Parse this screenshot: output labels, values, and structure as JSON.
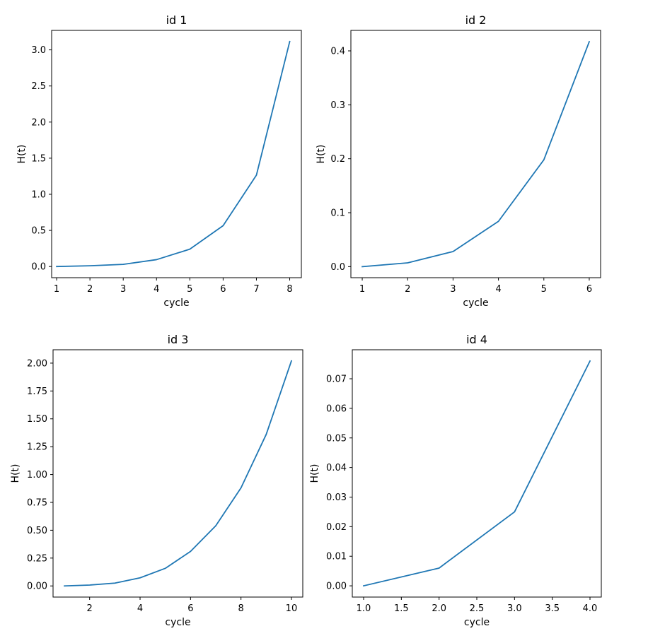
{
  "chart_data": [
    {
      "type": "line",
      "title": "id 1",
      "xlabel": "cycle",
      "ylabel": "H(t)",
      "x": [
        1,
        2,
        3,
        4,
        5,
        6,
        7,
        8
      ],
      "series": [
        {
          "values": [
            0.0,
            0.01,
            0.03,
            0.095,
            0.24,
            0.565,
            1.265,
            3.115
          ]
        }
      ],
      "xlim": [
        0.85,
        8.35
      ],
      "ylim": [
        -0.155,
        3.27
      ],
      "xticks": [
        1,
        2,
        3,
        4,
        5,
        6,
        7,
        8
      ],
      "xtick_labels": [
        "1",
        "2",
        "3",
        "4",
        "5",
        "6",
        "7",
        "8"
      ],
      "yticks": [
        0,
        0.5,
        1.0,
        1.5,
        2.0,
        2.5,
        3.0
      ],
      "ytick_labels": [
        "0.0",
        "0.5",
        "1.0",
        "1.5",
        "2.0",
        "2.5",
        "3.0"
      ],
      "grid": false,
      "color": "#1f77b4"
    },
    {
      "type": "line",
      "title": "id 2",
      "xlabel": "cycle",
      "ylabel": "H(t)",
      "x": [
        1,
        2,
        3,
        4,
        5,
        6
      ],
      "series": [
        {
          "values": [
            0.0,
            0.007,
            0.028,
            0.084,
            0.198,
            0.417
          ]
        }
      ],
      "xlim": [
        0.75,
        6.25
      ],
      "ylim": [
        -0.0205,
        0.438
      ],
      "xticks": [
        1,
        2,
        3,
        4,
        5,
        6
      ],
      "xtick_labels": [
        "1",
        "2",
        "3",
        "4",
        "5",
        "6"
      ],
      "yticks": [
        0,
        0.1,
        0.2,
        0.3,
        0.4
      ],
      "ytick_labels": [
        "0.0",
        "0.1",
        "0.2",
        "0.3",
        "0.4"
      ],
      "grid": false,
      "color": "#1f77b4"
    },
    {
      "type": "line",
      "title": "id 3",
      "xlabel": "cycle",
      "ylabel": "H(t)",
      "x": [
        1,
        2,
        3,
        4,
        5,
        6,
        7,
        8,
        9,
        10
      ],
      "series": [
        {
          "values": [
            0.0,
            0.008,
            0.025,
            0.073,
            0.158,
            0.31,
            0.54,
            0.88,
            1.36,
            2.02
          ]
        }
      ],
      "xlim": [
        0.55,
        10.45
      ],
      "ylim": [
        -0.1,
        2.12
      ],
      "xticks": [
        2,
        4,
        6,
        8,
        10
      ],
      "xtick_labels": [
        "2",
        "4",
        "6",
        "8",
        "10"
      ],
      "yticks": [
        0,
        0.25,
        0.5,
        0.75,
        1.0,
        1.25,
        1.5,
        1.75,
        2.0
      ],
      "ytick_labels": [
        "0.00",
        "0.25",
        "0.50",
        "0.75",
        "1.00",
        "1.25",
        "1.50",
        "1.75",
        "2.00"
      ],
      "grid": false,
      "color": "#1f77b4"
    },
    {
      "type": "line",
      "title": "id 4",
      "xlabel": "cycle",
      "ylabel": "H(t)",
      "x": [
        1,
        2,
        3,
        4
      ],
      "series": [
        {
          "values": [
            0.0,
            0.006,
            0.025,
            0.076
          ]
        }
      ],
      "xlim": [
        0.85,
        4.15
      ],
      "ylim": [
        -0.0038,
        0.0798
      ],
      "xticks": [
        1.0,
        1.5,
        2.0,
        2.5,
        3.0,
        3.5,
        4.0
      ],
      "xtick_labels": [
        "1.0",
        "1.5",
        "2.0",
        "2.5",
        "3.0",
        "3.5",
        "4.0"
      ],
      "yticks": [
        0,
        0.01,
        0.02,
        0.03,
        0.04,
        0.05,
        0.06,
        0.07
      ],
      "ytick_labels": [
        "0.00",
        "0.01",
        "0.02",
        "0.03",
        "0.04",
        "0.05",
        "0.06",
        "0.07"
      ],
      "grid": false,
      "color": "#1f77b4"
    }
  ]
}
